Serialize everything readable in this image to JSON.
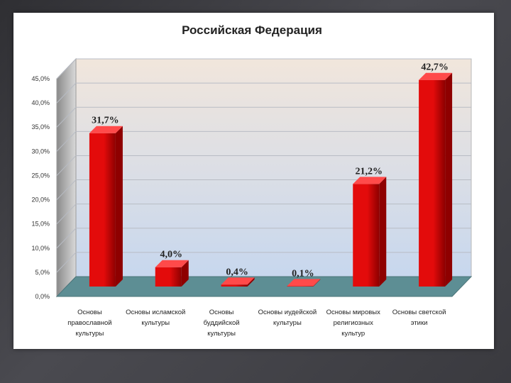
{
  "chart_data": {
    "type": "bar",
    "title": "Российская Федерация",
    "categories": [
      [
        "Основы",
        "православной",
        "культуры"
      ],
      [
        "Основы исламской",
        "культуры"
      ],
      [
        "Основы",
        "буддийской",
        "культуры"
      ],
      [
        "Основы иудейской",
        "культуры"
      ],
      [
        "Основы мировых",
        "религиозных",
        "культур"
      ],
      [
        "Основы светской",
        "этики"
      ]
    ],
    "values": [
      31.7,
      4.0,
      0.4,
      0.1,
      21.2,
      42.7
    ],
    "value_labels": [
      "31,7%",
      "4,0%",
      "0,4%",
      "0,1%",
      "21,2%",
      "42,7%"
    ],
    "yticks": [
      "0,0%",
      "5,0%",
      "10,0%",
      "15,0%",
      "20,0%",
      "25,0%",
      "30,0%",
      "35,0%",
      "40,0%",
      "45,0%"
    ],
    "ylim": [
      0,
      45
    ],
    "grid": true,
    "legend": "none",
    "style": "3d-column",
    "colors": {
      "bar": "#e30b0b",
      "bar_dark": "#8e0000",
      "bar_top": "#ff4a4a",
      "floor": "#5d8e94",
      "wall_top": "#f1e6dc",
      "wall_bottom": "#c7d7ee"
    }
  }
}
